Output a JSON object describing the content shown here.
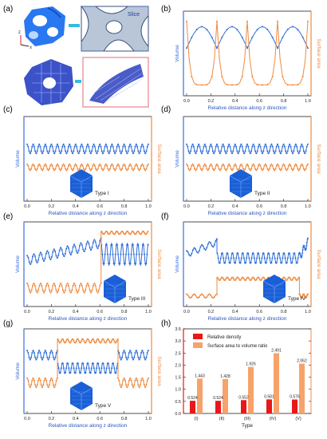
{
  "colors": {
    "volume": "#2f6fd8",
    "surface": "#f08a3e",
    "axis_blue": "#3b6fe0",
    "axis_orange": "#f08a3e",
    "bar_red": "#e81818",
    "bar_orange": "#f7a26a",
    "pink_frame": "#e06a78",
    "cube_blue": "#1a5fd6"
  },
  "panels": [
    {
      "letter": "(a)"
    },
    {
      "letter": "(b)",
      "xlabel": "Relative distance along z direction",
      "ylabel_left": "Volume",
      "ylabel_right": "Surface area"
    },
    {
      "letter": "(c)",
      "xlabel": "Relative distance along z direction",
      "ylabel_left": "Volume",
      "ylabel_right": "Surface area",
      "type_label": "Type I"
    },
    {
      "letter": "(d)",
      "xlabel": "Relative distance along z direction",
      "ylabel_left": "Volume",
      "ylabel_right": "Surface area",
      "type_label": "Type II"
    },
    {
      "letter": "(e)",
      "xlabel": "Relative distance along z direction",
      "ylabel_left": "Volume",
      "ylabel_right": "Surface area",
      "type_label": "Type III"
    },
    {
      "letter": "(f)",
      "xlabel": "Relative distance along z direction",
      "ylabel_left": "Volume",
      "ylabel_right": "Surface area",
      "type_label": "Type IV"
    },
    {
      "letter": "(g)",
      "xlabel": "Relative distance along z direction",
      "ylabel_left": "Volume",
      "ylabel_right": "Surface area",
      "type_label": "Type V"
    },
    {
      "letter": "(h)"
    }
  ],
  "panel_a": {
    "slice_label": "Slice",
    "axis_z": "z",
    "axis_x": "x"
  },
  "chart_data": [
    {
      "panel": "b",
      "type": "line",
      "x_ticks": [
        "0.0",
        "0.2",
        "0.4",
        "0.6",
        "0.8",
        "1.0"
      ],
      "xlim": [
        0,
        1
      ],
      "series": [
        {
          "name": "Volume",
          "pattern": "dome",
          "periods": 4,
          "low": 0.58,
          "high": 0.86
        },
        {
          "name": "Surface area",
          "pattern": "spiky",
          "periods": 4,
          "low": 0.1,
          "high": 0.93
        }
      ]
    },
    {
      "panel": "c",
      "type": "line",
      "x_ticks": [
        "0.0",
        "0.2",
        "0.4",
        "0.6",
        "0.8",
        "1.0"
      ],
      "xlim": [
        0,
        1
      ],
      "series": [
        {
          "name": "Volume",
          "pattern": "wavy",
          "periods": 20,
          "low": 0.58,
          "high": 0.7
        },
        {
          "name": "Surface area",
          "pattern": "wavy",
          "periods": 20,
          "low": 0.36,
          "high": 0.44
        }
      ]
    },
    {
      "panel": "d",
      "type": "line",
      "x_ticks": [
        "0.0",
        "0.2",
        "0.4",
        "0.6",
        "0.8",
        "1.0"
      ],
      "xlim": [
        0,
        1
      ],
      "series": [
        {
          "name": "Volume",
          "pattern": "wavy",
          "periods": 20,
          "low": 0.58,
          "high": 0.7
        },
        {
          "name": "Surface area",
          "pattern": "wavy",
          "periods": 20,
          "low": 0.36,
          "high": 0.44
        }
      ]
    },
    {
      "panel": "e",
      "type": "line",
      "x_ticks": [
        "0.0",
        "0.2",
        "0.4",
        "0.6",
        "0.8",
        "1.0"
      ],
      "xlim": [
        0,
        1
      ],
      "transition": 0.61,
      "series": [
        {
          "name": "Volume",
          "segments": [
            {
              "x": [
                0,
                0.61
              ],
              "pattern": "rising_wavy",
              "periods": 11,
              "low": 0.5,
              "high": 0.85
            },
            {
              "x": [
                0.61,
                1.0
              ],
              "pattern": "wavy",
              "periods": 9,
              "low": 0.5,
              "high": 0.78
            }
          ]
        },
        {
          "name": "Surface area",
          "segments": [
            {
              "x": [
                0,
                0.61
              ],
              "pattern": "wavy",
              "periods": 11,
              "low": 0.14,
              "high": 0.26
            },
            {
              "x": [
                0.61,
                1.0
              ],
              "pattern": "wavy",
              "periods": 9,
              "low": 0.9,
              "high": 0.94
            }
          ]
        }
      ]
    },
    {
      "panel": "f",
      "type": "line",
      "x_ticks": [
        "0.0",
        "0.2",
        "0.4",
        "0.6",
        "0.8",
        "1.0"
      ],
      "xlim": [
        0,
        1
      ],
      "series": [
        {
          "name": "Volume",
          "segments": [
            {
              "x": [
                0,
                0.25
              ],
              "pattern": "rising_wavy",
              "periods": 4,
              "low": 0.6,
              "high": 0.84
            },
            {
              "x": [
                0.25,
                0.93
              ],
              "pattern": "wavy",
              "periods": 16,
              "low": 0.52,
              "high": 0.66
            },
            {
              "x": [
                0.93,
                1.0
              ],
              "pattern": "rising_wavy",
              "periods": 2,
              "low": 0.55,
              "high": 0.85
            }
          ]
        },
        {
          "name": "Surface area",
          "segments": [
            {
              "x": [
                0,
                0.25
              ],
              "pattern": "wavy",
              "periods": 4,
              "low": 0.07,
              "high": 0.12
            },
            {
              "x": [
                0.25,
                0.93
              ],
              "pattern": "wavy",
              "periods": 16,
              "low": 0.3,
              "high": 0.34
            },
            {
              "x": [
                0.93,
                1.0
              ],
              "pattern": "wavy",
              "periods": 2,
              "low": 0.07,
              "high": 0.12
            }
          ]
        }
      ]
    },
    {
      "panel": "g",
      "type": "line",
      "x_ticks": [
        "0.0",
        "0.2",
        "0.4",
        "0.6",
        "0.8",
        "1.0"
      ],
      "xlim": [
        0,
        1
      ],
      "series": [
        {
          "name": "Volume",
          "segments": [
            {
              "x": [
                0,
                0.25
              ],
              "pattern": "wavy",
              "periods": 5,
              "low": 0.66,
              "high": 0.78
            },
            {
              "x": [
                0.25,
                0.75
              ],
              "pattern": "wavy",
              "periods": 12,
              "low": 0.48,
              "high": 0.62
            },
            {
              "x": [
                0.75,
                1.0
              ],
              "pattern": "wavy",
              "periods": 5,
              "low": 0.66,
              "high": 0.78
            }
          ]
        },
        {
          "name": "Surface area",
          "segments": [
            {
              "x": [
                0,
                0.25
              ],
              "pattern": "wavy",
              "periods": 5,
              "low": 0.3,
              "high": 0.42
            },
            {
              "x": [
                0.25,
                0.75
              ],
              "pattern": "wavy",
              "periods": 12,
              "low": 0.88,
              "high": 0.93
            },
            {
              "x": [
                0.75,
                1.0
              ],
              "pattern": "wavy",
              "periods": 5,
              "low": 0.3,
              "high": 0.42
            }
          ]
        }
      ]
    },
    {
      "panel": "h",
      "type": "bar",
      "categories": [
        "(I)",
        "(II)",
        "(III)",
        "(IV)",
        "(V)"
      ],
      "xlabel": "Type",
      "ylim": [
        0,
        3.5
      ],
      "y_ticks": [
        "0.0",
        "0.5",
        "1.0",
        "1.5",
        "2.0",
        "2.5",
        "3.0",
        "3.5"
      ],
      "series": [
        {
          "name": "Relative density",
          "values": [
            0.524,
            0.524,
            0.552,
            0.581,
            0.576
          ],
          "labels": [
            "0.524",
            "0.524",
            "0.552",
            "0.581",
            "0.576"
          ]
        },
        {
          "name": "Surface area to volume ratio",
          "values": [
            1.443,
            1.428,
            1.926,
            2.491,
            2.062
          ],
          "labels": [
            "1.443",
            "1.428",
            "1.926",
            "2.491",
            "2.062"
          ]
        }
      ]
    }
  ]
}
